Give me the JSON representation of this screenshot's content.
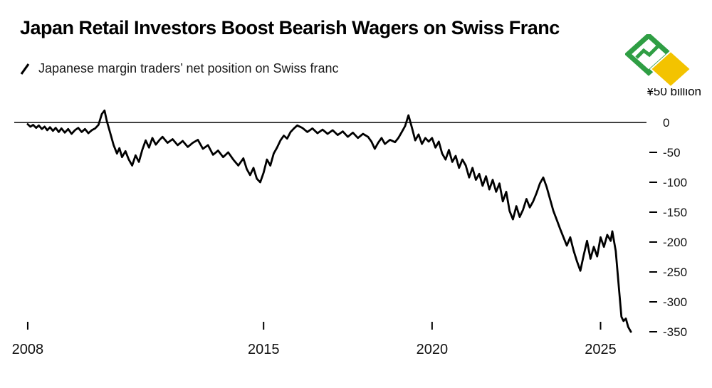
{
  "chart_data": {
    "type": "line",
    "title": "Japan Retail Investors Boost Bearish Wagers on Swiss Franc",
    "subtitle": "Japanese margin traders’ net position on Swiss franc",
    "unit_label": "¥50 billion",
    "x_ticks": [
      2008,
      2015,
      2020,
      2025
    ],
    "y_ticks": [
      0,
      -50,
      -100,
      -150,
      -200,
      -250,
      -300,
      -350
    ],
    "xlim": [
      2007.6,
      2026.3
    ],
    "ylim": [
      -360,
      25
    ],
    "grid": false,
    "y_axis_side": "right",
    "line_color": "#000000",
    "series": [
      {
        "name": "Japanese margin traders' net position on Swiss franc",
        "points": [
          [
            2008.0,
            -3
          ],
          [
            2008.08,
            -7
          ],
          [
            2008.16,
            -4
          ],
          [
            2008.25,
            -9
          ],
          [
            2008.33,
            -5
          ],
          [
            2008.42,
            -11
          ],
          [
            2008.5,
            -7
          ],
          [
            2008.58,
            -13
          ],
          [
            2008.66,
            -8
          ],
          [
            2008.75,
            -14
          ],
          [
            2008.83,
            -9
          ],
          [
            2008.92,
            -16
          ],
          [
            2009.0,
            -10
          ],
          [
            2009.1,
            -17
          ],
          [
            2009.2,
            -11
          ],
          [
            2009.3,
            -19
          ],
          [
            2009.4,
            -13
          ],
          [
            2009.5,
            -9
          ],
          [
            2009.6,
            -16
          ],
          [
            2009.7,
            -11
          ],
          [
            2009.8,
            -18
          ],
          [
            2009.9,
            -13
          ],
          [
            2010.0,
            -10
          ],
          [
            2010.1,
            -4
          ],
          [
            2010.2,
            14
          ],
          [
            2010.28,
            20
          ],
          [
            2010.35,
            2
          ],
          [
            2010.45,
            -18
          ],
          [
            2010.55,
            -38
          ],
          [
            2010.65,
            -52
          ],
          [
            2010.72,
            -43
          ],
          [
            2010.8,
            -58
          ],
          [
            2010.9,
            -48
          ],
          [
            2011.0,
            -62
          ],
          [
            2011.1,
            -72
          ],
          [
            2011.2,
            -55
          ],
          [
            2011.3,
            -66
          ],
          [
            2011.4,
            -46
          ],
          [
            2011.5,
            -30
          ],
          [
            2011.6,
            -42
          ],
          [
            2011.7,
            -26
          ],
          [
            2011.8,
            -37
          ],
          [
            2011.9,
            -30
          ],
          [
            2012.0,
            -24
          ],
          [
            2012.15,
            -34
          ],
          [
            2012.3,
            -28
          ],
          [
            2012.45,
            -38
          ],
          [
            2012.6,
            -31
          ],
          [
            2012.75,
            -41
          ],
          [
            2012.9,
            -34
          ],
          [
            2013.05,
            -29
          ],
          [
            2013.2,
            -44
          ],
          [
            2013.35,
            -38
          ],
          [
            2013.5,
            -54
          ],
          [
            2013.65,
            -47
          ],
          [
            2013.8,
            -58
          ],
          [
            2013.95,
            -50
          ],
          [
            2014.1,
            -62
          ],
          [
            2014.25,
            -72
          ],
          [
            2014.4,
            -60
          ],
          [
            2014.5,
            -78
          ],
          [
            2014.6,
            -88
          ],
          [
            2014.7,
            -76
          ],
          [
            2014.8,
            -94
          ],
          [
            2014.9,
            -100
          ],
          [
            2015.0,
            -84
          ],
          [
            2015.1,
            -62
          ],
          [
            2015.2,
            -72
          ],
          [
            2015.3,
            -52
          ],
          [
            2015.4,
            -42
          ],
          [
            2015.5,
            -30
          ],
          [
            2015.6,
            -22
          ],
          [
            2015.7,
            -27
          ],
          [
            2015.8,
            -16
          ],
          [
            2015.9,
            -10
          ],
          [
            2016.0,
            -5
          ],
          [
            2016.15,
            -9
          ],
          [
            2016.3,
            -16
          ],
          [
            2016.45,
            -10
          ],
          [
            2016.6,
            -18
          ],
          [
            2016.75,
            -12
          ],
          [
            2016.9,
            -19
          ],
          [
            2017.05,
            -13
          ],
          [
            2017.2,
            -21
          ],
          [
            2017.35,
            -15
          ],
          [
            2017.5,
            -24
          ],
          [
            2017.65,
            -17
          ],
          [
            2017.8,
            -26
          ],
          [
            2017.95,
            -19
          ],
          [
            2018.1,
            -24
          ],
          [
            2018.2,
            -32
          ],
          [
            2018.3,
            -44
          ],
          [
            2018.4,
            -34
          ],
          [
            2018.5,
            -26
          ],
          [
            2018.6,
            -36
          ],
          [
            2018.75,
            -29
          ],
          [
            2018.9,
            -33
          ],
          [
            2019.0,
            -26
          ],
          [
            2019.1,
            -16
          ],
          [
            2019.2,
            -6
          ],
          [
            2019.3,
            12
          ],
          [
            2019.4,
            -8
          ],
          [
            2019.5,
            -30
          ],
          [
            2019.6,
            -20
          ],
          [
            2019.7,
            -36
          ],
          [
            2019.8,
            -26
          ],
          [
            2019.9,
            -32
          ],
          [
            2020.0,
            -26
          ],
          [
            2020.1,
            -42
          ],
          [
            2020.2,
            -32
          ],
          [
            2020.3,
            -52
          ],
          [
            2020.4,
            -62
          ],
          [
            2020.5,
            -46
          ],
          [
            2020.6,
            -66
          ],
          [
            2020.7,
            -56
          ],
          [
            2020.8,
            -76
          ],
          [
            2020.9,
            -62
          ],
          [
            2021.0,
            -72
          ],
          [
            2021.1,
            -92
          ],
          [
            2021.2,
            -76
          ],
          [
            2021.3,
            -96
          ],
          [
            2021.4,
            -86
          ],
          [
            2021.5,
            -106
          ],
          [
            2021.6,
            -90
          ],
          [
            2021.7,
            -112
          ],
          [
            2021.8,
            -96
          ],
          [
            2021.9,
            -116
          ],
          [
            2022.0,
            -102
          ],
          [
            2022.1,
            -132
          ],
          [
            2022.2,
            -116
          ],
          [
            2022.3,
            -148
          ],
          [
            2022.4,
            -162
          ],
          [
            2022.5,
            -140
          ],
          [
            2022.6,
            -158
          ],
          [
            2022.7,
            -146
          ],
          [
            2022.8,
            -128
          ],
          [
            2022.9,
            -142
          ],
          [
            2023.0,
            -132
          ],
          [
            2023.1,
            -118
          ],
          [
            2023.2,
            -102
          ],
          [
            2023.3,
            -92
          ],
          [
            2023.4,
            -108
          ],
          [
            2023.5,
            -128
          ],
          [
            2023.6,
            -148
          ],
          [
            2023.7,
            -163
          ],
          [
            2023.8,
            -178
          ],
          [
            2023.9,
            -192
          ],
          [
            2024.0,
            -206
          ],
          [
            2024.1,
            -192
          ],
          [
            2024.2,
            -214
          ],
          [
            2024.3,
            -232
          ],
          [
            2024.4,
            -248
          ],
          [
            2024.5,
            -222
          ],
          [
            2024.6,
            -198
          ],
          [
            2024.7,
            -228
          ],
          [
            2024.8,
            -208
          ],
          [
            2024.9,
            -224
          ],
          [
            2025.0,
            -192
          ],
          [
            2025.1,
            -208
          ],
          [
            2025.2,
            -188
          ],
          [
            2025.3,
            -198
          ],
          [
            2025.35,
            -182
          ],
          [
            2025.45,
            -215
          ],
          [
            2025.55,
            -280
          ],
          [
            2025.62,
            -325
          ],
          [
            2025.68,
            -332
          ],
          [
            2025.75,
            -328
          ],
          [
            2025.82,
            -342
          ],
          [
            2025.9,
            -350
          ]
        ]
      }
    ]
  },
  "logo": {
    "green": "#2f9e44",
    "yellow": "#f3c300"
  }
}
